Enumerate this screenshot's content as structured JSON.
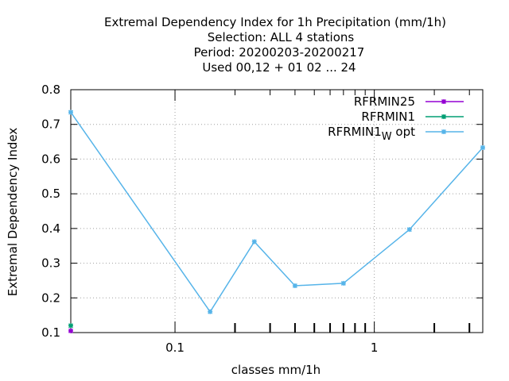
{
  "chart_data": {
    "type": "line",
    "title_lines": [
      "Extremal Dependency Index  for 1h Precipitation (mm/1h)",
      "Selection: ALL      4 stations",
      "Period: 20200203-20200217",
      "Used  00,12  + 01 02 ... 24"
    ],
    "xlabel": "classes mm/1h",
    "ylabel": "Extremal Dependency Index",
    "x_scale": "log",
    "xlim": [
      0.03,
      3.5
    ],
    "ylim": [
      0.1,
      0.8
    ],
    "x_ticks": [
      {
        "value": 0.1,
        "label": "0.1"
      },
      {
        "value": 1,
        "label": "1"
      }
    ],
    "x_minor_ticks": [
      0.2,
      0.3,
      0.4,
      0.5,
      0.6,
      0.7,
      0.8,
      0.9,
      2,
      3
    ],
    "y_ticks": [
      {
        "value": 0.1,
        "label": "0.1"
      },
      {
        "value": 0.2,
        "label": "0.2"
      },
      {
        "value": 0.3,
        "label": "0.3"
      },
      {
        "value": 0.4,
        "label": "0.4"
      },
      {
        "value": 0.5,
        "label": "0.5"
      },
      {
        "value": 0.6,
        "label": "0.6"
      },
      {
        "value": 0.7,
        "label": "0.7"
      },
      {
        "value": 0.8,
        "label": "0.8"
      }
    ],
    "grid": true,
    "legend_position": "top-right",
    "series": [
      {
        "name": "RFRMIN25",
        "color": "#9400d3",
        "points": [
          [
            0.03,
            0.105
          ]
        ]
      },
      {
        "name": "RFRMIN1",
        "color": "#009e73",
        "points": [
          [
            0.03,
            0.12
          ]
        ]
      },
      {
        "name_main": "RFRMIN1",
        "name_sub": "W",
        "name_suffix": " opt",
        "color": "#56b4e9",
        "points": [
          [
            0.03,
            0.735
          ],
          [
            0.15,
            0.16
          ],
          [
            0.25,
            0.362
          ],
          [
            0.4,
            0.235
          ],
          [
            0.7,
            0.242
          ],
          [
            1.5,
            0.397
          ],
          [
            3.5,
            0.633
          ]
        ]
      }
    ]
  }
}
